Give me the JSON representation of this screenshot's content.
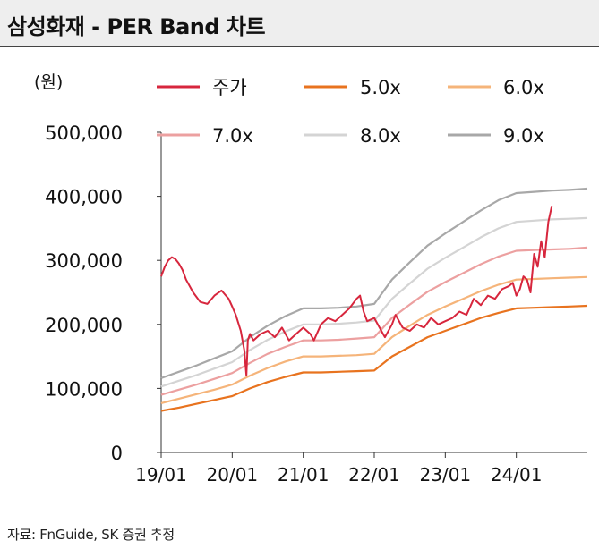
{
  "header": {
    "title": "삼성화재 - PER Band 차트"
  },
  "source": "자료: FnGuide, SK 증권 추정",
  "chart_data": {
    "type": "line",
    "title": "삼성화재 - PER Band 차트",
    "ylabel": "(원)",
    "xlabel": "",
    "ylim": [
      0,
      500000
    ],
    "yticks": [
      0,
      100000,
      200000,
      300000,
      400000,
      500000
    ],
    "ytick_labels": [
      "0",
      "100,000",
      "200,000",
      "300,000",
      "400,000",
      "500,000"
    ],
    "xlim": [
      2019.0,
      2025.0
    ],
    "xticks": [
      2019.0,
      2020.0,
      2021.0,
      2022.0,
      2023.0,
      2024.0
    ],
    "xtick_labels": [
      "19/01",
      "20/01",
      "21/01",
      "22/01",
      "23/01",
      "24/01"
    ],
    "legend_position": "top",
    "series": [
      {
        "name": "주가",
        "color": "#d7263d",
        "x": [
          2019.0,
          2019.05,
          2019.1,
          2019.15,
          2019.2,
          2019.25,
          2019.3,
          2019.35,
          2019.45,
          2019.55,
          2019.65,
          2019.75,
          2019.85,
          2019.95,
          2020.0,
          2020.05,
          2020.12,
          2020.17,
          2020.2,
          2020.22,
          2020.25,
          2020.3,
          2020.4,
          2020.5,
          2020.6,
          2020.7,
          2020.8,
          2020.9,
          2021.0,
          2021.1,
          2021.15,
          2021.25,
          2021.35,
          2021.45,
          2021.55,
          2021.65,
          2021.75,
          2021.8,
          2021.85,
          2021.9,
          2022.0,
          2022.1,
          2022.15,
          2022.25,
          2022.3,
          2022.4,
          2022.5,
          2022.6,
          2022.7,
          2022.8,
          2022.9,
          2023.0,
          2023.1,
          2023.2,
          2023.3,
          2023.4,
          2023.5,
          2023.6,
          2023.7,
          2023.8,
          2023.9,
          2023.95,
          2024.0,
          2024.05,
          2024.1,
          2024.15,
          2024.2,
          2024.25,
          2024.3,
          2024.35,
          2024.4,
          2024.45,
          2024.5
        ],
        "values": [
          275000,
          290000,
          300000,
          305000,
          302000,
          295000,
          285000,
          270000,
          250000,
          235000,
          232000,
          245000,
          253000,
          240000,
          228000,
          215000,
          190000,
          160000,
          120000,
          175000,
          185000,
          175000,
          185000,
          190000,
          180000,
          195000,
          175000,
          185000,
          195000,
          185000,
          175000,
          200000,
          210000,
          205000,
          215000,
          225000,
          240000,
          245000,
          220000,
          205000,
          210000,
          190000,
          180000,
          200000,
          215000,
          195000,
          190000,
          200000,
          195000,
          210000,
          200000,
          205000,
          210000,
          220000,
          215000,
          240000,
          230000,
          245000,
          240000,
          255000,
          260000,
          265000,
          245000,
          255000,
          275000,
          270000,
          250000,
          310000,
          290000,
          330000,
          305000,
          360000,
          385000
        ]
      },
      {
        "name": "5.0x",
        "color": "#e8731f",
        "x": [
          2019.0,
          2019.25,
          2019.5,
          2019.75,
          2020.0,
          2020.25,
          2020.5,
          2020.75,
          2021.0,
          2021.25,
          2021.5,
          2021.75,
          2022.0,
          2022.25,
          2022.5,
          2022.75,
          2023.0,
          2023.25,
          2023.5,
          2023.75,
          2024.0,
          2024.25,
          2024.5,
          2024.75,
          2025.0
        ],
        "values": [
          65000,
          70000,
          76000,
          82000,
          88000,
          100000,
          110000,
          118000,
          125000,
          125000,
          126000,
          127000,
          128000,
          150000,
          165000,
          180000,
          190000,
          200000,
          210000,
          218000,
          225000,
          226000,
          227000,
          228000,
          229000
        ]
      },
      {
        "name": "6.0x",
        "color": "#f5b47a",
        "x": [
          2019.0,
          2019.25,
          2019.5,
          2019.75,
          2020.0,
          2020.25,
          2020.5,
          2020.75,
          2021.0,
          2021.25,
          2021.5,
          2021.75,
          2022.0,
          2022.25,
          2022.5,
          2022.75,
          2023.0,
          2023.25,
          2023.5,
          2023.75,
          2024.0,
          2024.25,
          2024.5,
          2024.75,
          2025.0
        ],
        "values": [
          77000,
          84000,
          91000,
          98000,
          106000,
          120000,
          132000,
          142000,
          150000,
          150000,
          151000,
          152000,
          154000,
          180000,
          198000,
          215000,
          228000,
          240000,
          252000,
          262000,
          270000,
          271000,
          272000,
          273000,
          274000
        ]
      },
      {
        "name": "7.0x",
        "color": "#eca0a0",
        "x": [
          2019.0,
          2019.25,
          2019.5,
          2019.75,
          2020.0,
          2020.25,
          2020.5,
          2020.75,
          2021.0,
          2021.25,
          2021.5,
          2021.75,
          2022.0,
          2022.25,
          2022.5,
          2022.75,
          2023.0,
          2023.25,
          2023.5,
          2023.75,
          2024.0,
          2024.25,
          2024.5,
          2024.75,
          2025.0
        ],
        "values": [
          90000,
          98000,
          106000,
          115000,
          124000,
          140000,
          154000,
          165000,
          175000,
          175000,
          176000,
          178000,
          180000,
          210000,
          231000,
          251000,
          266000,
          280000,
          294000,
          306000,
          315000,
          316000,
          317000,
          318000,
          320000
        ]
      },
      {
        "name": "8.0x",
        "color": "#d4d4d4",
        "x": [
          2019.0,
          2019.25,
          2019.5,
          2019.75,
          2020.0,
          2020.25,
          2020.5,
          2020.75,
          2021.0,
          2021.25,
          2021.5,
          2021.75,
          2022.0,
          2022.25,
          2022.5,
          2022.75,
          2023.0,
          2023.25,
          2023.5,
          2023.75,
          2024.0,
          2024.25,
          2024.5,
          2024.75,
          2025.0
        ],
        "values": [
          103000,
          112000,
          121000,
          131000,
          141000,
          160000,
          176000,
          189000,
          200000,
          200000,
          201000,
          203000,
          206000,
          240000,
          264000,
          287000,
          304000,
          320000,
          336000,
          350000,
          360000,
          362000,
          364000,
          365000,
          366000
        ]
      },
      {
        "name": "9.0x",
        "color": "#a8a8a8",
        "x": [
          2019.0,
          2019.25,
          2019.5,
          2019.75,
          2020.0,
          2020.25,
          2020.5,
          2020.75,
          2021.0,
          2021.25,
          2021.5,
          2021.75,
          2022.0,
          2022.25,
          2022.5,
          2022.75,
          2023.0,
          2023.25,
          2023.5,
          2023.75,
          2024.0,
          2024.25,
          2024.5,
          2024.75,
          2025.0
        ],
        "values": [
          116000,
          126000,
          136000,
          147000,
          158000,
          180000,
          198000,
          213000,
          225000,
          225000,
          226000,
          228000,
          232000,
          270000,
          297000,
          323000,
          342000,
          360000,
          378000,
          394000,
          405000,
          407000,
          409000,
          410000,
          412000
        ]
      }
    ]
  }
}
